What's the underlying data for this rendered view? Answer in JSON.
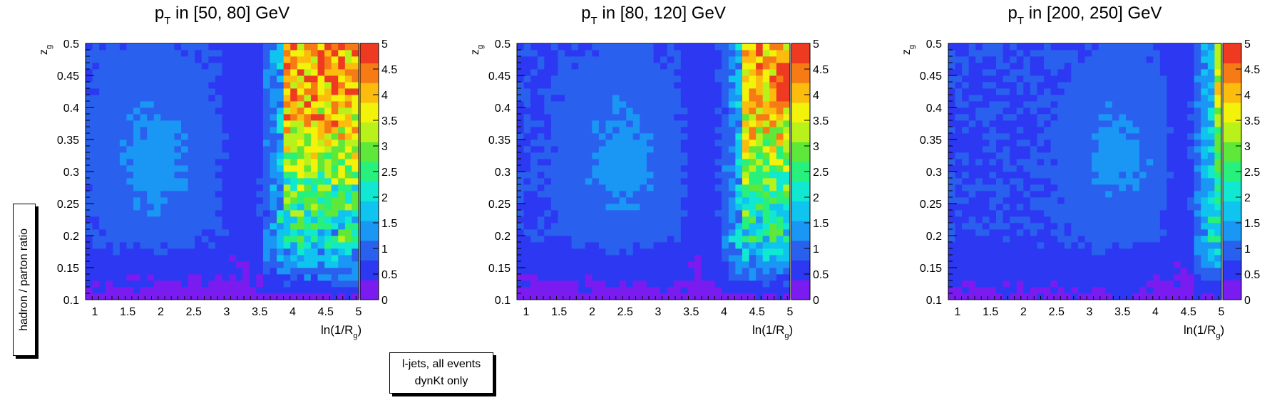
{
  "chart_data": [
    {
      "type": "heatmap",
      "title": "p_T in [50, 80] GeV",
      "title_main": "p",
      "title_sub": "T",
      "title_rest": " in [50, 80] GeV",
      "xlabel": "ln(1/R",
      "xlabel_sub": "g",
      "xlabel_end": ")",
      "ylabel": "z",
      "ylabel_sub": "g",
      "xlim": [
        0.86,
        5.0
      ],
      "ylim": [
        0.1,
        0.5
      ],
      "xticks": [
        "1",
        "1.5",
        "2",
        "2.5",
        "3",
        "3.5",
        "4",
        "4.5",
        "5"
      ],
      "yticks": [
        "0.1",
        "0.15",
        "0.2",
        "0.25",
        "0.3",
        "0.35",
        "0.4",
        "0.45",
        "0.5"
      ],
      "zlim": [
        0,
        5
      ],
      "zticks": [
        "0",
        "0.5",
        "1",
        "1.5",
        "2",
        "2.5",
        "3",
        "3.5",
        "4",
        "4.5",
        "5"
      ],
      "nx": 40,
      "ny": 40,
      "features": {
        "blob_center_x": 1.9,
        "blob_center_y": 0.32,
        "blob_value": 1.3,
        "valley_x": 3.2,
        "rise_start_x": 3.5,
        "hot_start_x": 3.9,
        "hot_value": 4.3,
        "low_band_value": 0.25,
        "noise": 0.9
      }
    },
    {
      "type": "heatmap",
      "title": "p_T in [80, 120] GeV",
      "title_main": "p",
      "title_sub": "T",
      "title_rest": " in [80, 120] GeV",
      "xlabel": "ln(1/R",
      "xlabel_sub": "g",
      "xlabel_end": ")",
      "ylabel": "z",
      "ylabel_sub": "g",
      "xlim": [
        0.86,
        5.0
      ],
      "ylim": [
        0.1,
        0.5
      ],
      "xticks": [
        "1",
        "1.5",
        "2",
        "2.5",
        "3",
        "3.5",
        "4",
        "4.5",
        "5"
      ],
      "yticks": [
        "0.1",
        "0.15",
        "0.2",
        "0.25",
        "0.3",
        "0.35",
        "0.4",
        "0.45",
        "0.5"
      ],
      "zlim": [
        0,
        5
      ],
      "zticks": [
        "0",
        "0.5",
        "1",
        "1.5",
        "2",
        "2.5",
        "3",
        "3.5",
        "4",
        "4.5",
        "5"
      ],
      "nx": 40,
      "ny": 40,
      "features": {
        "blob_center_x": 2.45,
        "blob_center_y": 0.32,
        "blob_value": 1.3,
        "valley_x": 3.6,
        "rise_start_x": 3.95,
        "hot_start_x": 4.3,
        "hot_value": 4.2,
        "low_band_value": 0.25,
        "noise": 0.8
      }
    },
    {
      "type": "heatmap",
      "title": "p_T in [200, 250] GeV",
      "title_main": "p",
      "title_sub": "T",
      "title_rest": " in [200, 250] GeV",
      "xlabel": "ln(1/R",
      "xlabel_sub": "g",
      "xlabel_end": ")",
      "ylabel": "z",
      "ylabel_sub": "g",
      "xlim": [
        0.86,
        5.0
      ],
      "ylim": [
        0.1,
        0.5
      ],
      "xticks": [
        "1",
        "1.5",
        "2",
        "2.5",
        "3",
        "3.5",
        "4",
        "4.5",
        "5"
      ],
      "yticks": [
        "0.1",
        "0.15",
        "0.2",
        "0.25",
        "0.3",
        "0.35",
        "0.4",
        "0.45",
        "0.5"
      ],
      "zlim": [
        0,
        5
      ],
      "zticks": [
        "0",
        "0.5",
        "1",
        "1.5",
        "2",
        "2.5",
        "3",
        "3.5",
        "4",
        "4.5",
        "5"
      ],
      "nx": 40,
      "ny": 40,
      "features": {
        "blob_center_x": 3.45,
        "blob_center_y": 0.33,
        "blob_value": 1.25,
        "valley_x": 4.3,
        "rise_start_x": 4.55,
        "hot_start_x": 4.85,
        "hot_value": 3.4,
        "low_band_value": 0.3,
        "noise": 0.6
      }
    }
  ],
  "labels": {
    "ylabel_box": "hadron / parton ratio",
    "info_line1": "l-jets, all events",
    "info_line2": "dynKt only"
  },
  "palette": [
    "#7a1cf0",
    "#2d38f2",
    "#2a60ee",
    "#1a96f4",
    "#0fc4ef",
    "#10e8d2",
    "#27f07d",
    "#5ee83a",
    "#b9f21a",
    "#f2f20a",
    "#fcbc0e",
    "#f77b14",
    "#ef3a22"
  ]
}
